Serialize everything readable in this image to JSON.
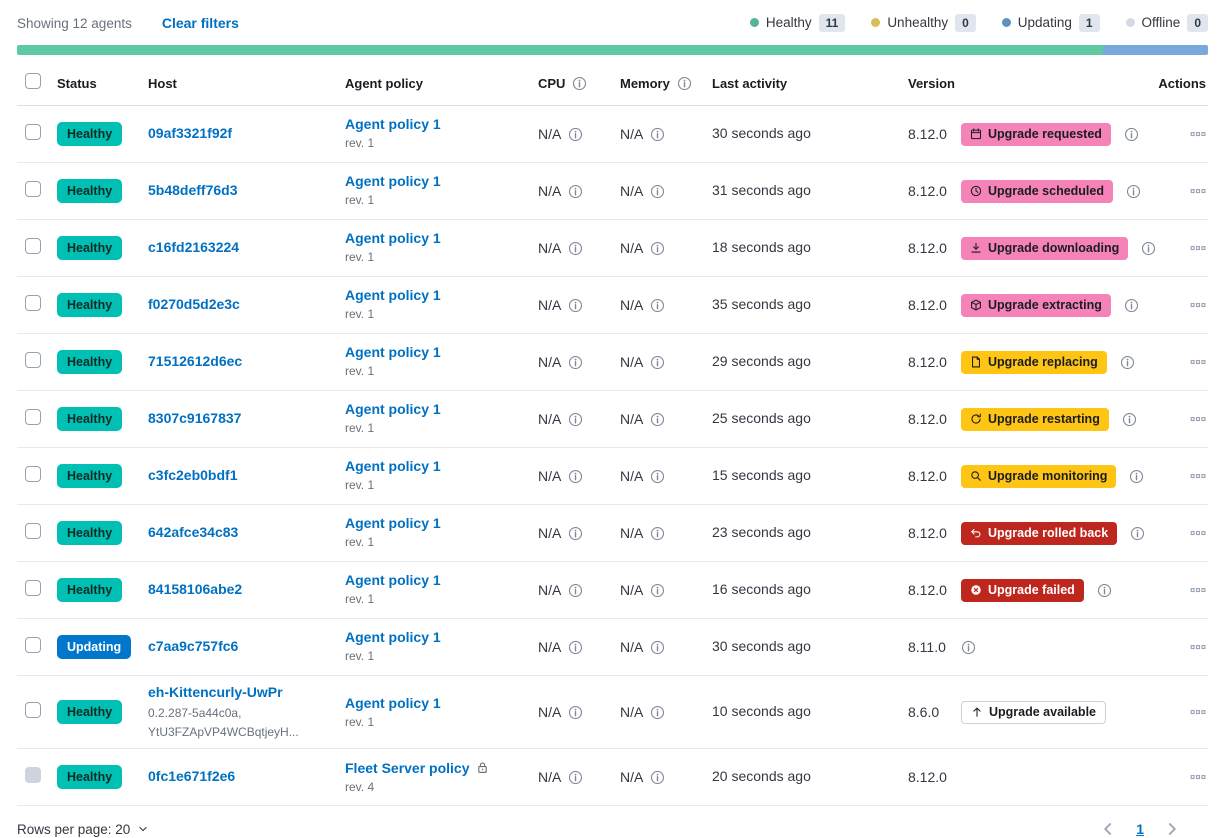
{
  "colors": {
    "link": "#0071C2",
    "success": "#00BFB3",
    "primary": "#0077CC",
    "accent": "#F583B7",
    "warning": "#FEC514",
    "danger": "#BD271E",
    "bar_green": "#5FC9A4",
    "bar_blue": "#78A9DA"
  },
  "header": {
    "showing": "Showing 12 agents",
    "clear_filters": "Clear filters",
    "legend": [
      {
        "label": "Healthy",
        "count": "11",
        "color": "#54B399"
      },
      {
        "label": "Unhealthy",
        "count": "0",
        "color": "#D6BF57"
      },
      {
        "label": "Updating",
        "count": "1",
        "color": "#6092C0"
      },
      {
        "label": "Offline",
        "count": "0",
        "color": "#D3DAE6"
      }
    ],
    "health_bar": [
      {
        "status": "healthy",
        "color": "#5FC9A4",
        "fraction": 0.912
      },
      {
        "status": "updating",
        "color": "#78A9DA",
        "fraction": 0.088
      }
    ]
  },
  "table": {
    "columns": {
      "status": "Status",
      "host": "Host",
      "policy": "Agent policy",
      "cpu": "CPU",
      "memory": "Memory",
      "activity": "Last activity",
      "version": "Version",
      "actions": "Actions"
    },
    "rows": [
      {
        "status": "Healthy",
        "status_type": "healthy",
        "host": "09af3321f92f",
        "host_sub": [],
        "policy": "Agent policy 1",
        "policy_rev": "rev. 1",
        "policy_locked": false,
        "cpu": "N/A",
        "memory": "N/A",
        "last_activity": "30 seconds ago",
        "version": "8.12.0",
        "version_info": false,
        "checkbox_disabled": false,
        "upgrade": {
          "label": "Upgrade requested",
          "type": "accent",
          "icon": "calendar-icon",
          "info": true
        }
      },
      {
        "status": "Healthy",
        "status_type": "healthy",
        "host": "5b48deff76d3",
        "host_sub": [],
        "policy": "Agent policy 1",
        "policy_rev": "rev. 1",
        "policy_locked": false,
        "cpu": "N/A",
        "memory": "N/A",
        "last_activity": "31 seconds ago",
        "version": "8.12.0",
        "version_info": false,
        "checkbox_disabled": false,
        "upgrade": {
          "label": "Upgrade scheduled",
          "type": "accent",
          "icon": "clock-icon",
          "info": true
        }
      },
      {
        "status": "Healthy",
        "status_type": "healthy",
        "host": "c16fd2163224",
        "host_sub": [],
        "policy": "Agent policy 1",
        "policy_rev": "rev. 1",
        "policy_locked": false,
        "cpu": "N/A",
        "memory": "N/A",
        "last_activity": "18 seconds ago",
        "version": "8.12.0",
        "version_info": false,
        "checkbox_disabled": false,
        "upgrade": {
          "label": "Upgrade downloading",
          "type": "accent",
          "icon": "download-icon",
          "info": true
        }
      },
      {
        "status": "Healthy",
        "status_type": "healthy",
        "host": "f0270d5d2e3c",
        "host_sub": [],
        "policy": "Agent policy 1",
        "policy_rev": "rev. 1",
        "policy_locked": false,
        "cpu": "N/A",
        "memory": "N/A",
        "last_activity": "35 seconds ago",
        "version": "8.12.0",
        "version_info": false,
        "checkbox_disabled": false,
        "upgrade": {
          "label": "Upgrade extracting",
          "type": "accent",
          "icon": "package-icon",
          "info": true
        }
      },
      {
        "status": "Healthy",
        "status_type": "healthy",
        "host": "71512612d6ec",
        "host_sub": [],
        "policy": "Agent policy 1",
        "policy_rev": "rev. 1",
        "policy_locked": false,
        "cpu": "N/A",
        "memory": "N/A",
        "last_activity": "29 seconds ago",
        "version": "8.12.0",
        "version_info": false,
        "checkbox_disabled": false,
        "upgrade": {
          "label": "Upgrade replacing",
          "type": "warning",
          "icon": "document-icon",
          "info": true
        }
      },
      {
        "status": "Healthy",
        "status_type": "healthy",
        "host": "8307c9167837",
        "host_sub": [],
        "policy": "Agent policy 1",
        "policy_rev": "rev. 1",
        "policy_locked": false,
        "cpu": "N/A",
        "memory": "N/A",
        "last_activity": "25 seconds ago",
        "version": "8.12.0",
        "version_info": false,
        "checkbox_disabled": false,
        "upgrade": {
          "label": "Upgrade restarting",
          "type": "warning",
          "icon": "refresh-icon",
          "info": true
        }
      },
      {
        "status": "Healthy",
        "status_type": "healthy",
        "host": "c3fc2eb0bdf1",
        "host_sub": [],
        "policy": "Agent policy 1",
        "policy_rev": "rev. 1",
        "policy_locked": false,
        "cpu": "N/A",
        "memory": "N/A",
        "last_activity": "15 seconds ago",
        "version": "8.12.0",
        "version_info": false,
        "checkbox_disabled": false,
        "upgrade": {
          "label": "Upgrade monitoring",
          "type": "warning",
          "icon": "inspect-icon",
          "info": true
        }
      },
      {
        "status": "Healthy",
        "status_type": "healthy",
        "host": "642afce34c83",
        "host_sub": [],
        "policy": "Agent policy 1",
        "policy_rev": "rev. 1",
        "policy_locked": false,
        "cpu": "N/A",
        "memory": "N/A",
        "last_activity": "23 seconds ago",
        "version": "8.12.0",
        "version_info": false,
        "checkbox_disabled": false,
        "upgrade": {
          "label": "Upgrade rolled back",
          "type": "danger",
          "icon": "return-icon",
          "info": true
        }
      },
      {
        "status": "Healthy",
        "status_type": "healthy",
        "host": "84158106abe2",
        "host_sub": [],
        "policy": "Agent policy 1",
        "policy_rev": "rev. 1",
        "policy_locked": false,
        "cpu": "N/A",
        "memory": "N/A",
        "last_activity": "16 seconds ago",
        "version": "8.12.0",
        "version_info": false,
        "checkbox_disabled": false,
        "upgrade": {
          "label": "Upgrade failed",
          "type": "danger",
          "icon": "error-icon",
          "info": true
        }
      },
      {
        "status": "Updating",
        "status_type": "updating",
        "host": "c7aa9c757fc6",
        "host_sub": [],
        "policy": "Agent policy 1",
        "policy_rev": "rev. 1",
        "policy_locked": false,
        "cpu": "N/A",
        "memory": "N/A",
        "last_activity": "30 seconds ago",
        "version": "8.11.0",
        "version_info": true,
        "checkbox_disabled": false,
        "upgrade": null
      },
      {
        "status": "Healthy",
        "status_type": "healthy",
        "host": "eh-Kittencurly-UwPr",
        "host_sub": [
          "0.2.287-5a44c0a,",
          "YtU3FZApVP4WCBqtjeyH..."
        ],
        "policy": "Agent policy 1",
        "policy_rev": "rev. 1",
        "policy_locked": false,
        "cpu": "N/A",
        "memory": "N/A",
        "last_activity": "10 seconds ago",
        "version": "8.6.0",
        "version_info": false,
        "checkbox_disabled": false,
        "upgrade": {
          "label": "Upgrade available",
          "type": "hollow",
          "icon": "arrow-up-icon",
          "info": false
        }
      },
      {
        "status": "Healthy",
        "status_type": "healthy",
        "host": "0fc1e671f2e6",
        "host_sub": [],
        "policy": "Fleet Server policy",
        "policy_rev": "rev. 4",
        "policy_locked": true,
        "cpu": "N/A",
        "memory": "N/A",
        "last_activity": "20 seconds ago",
        "version": "8.12.0",
        "version_info": false,
        "checkbox_disabled": true,
        "upgrade": null
      }
    ]
  },
  "footer": {
    "rows_per_page": "Rows per page: 20",
    "page": "1"
  }
}
